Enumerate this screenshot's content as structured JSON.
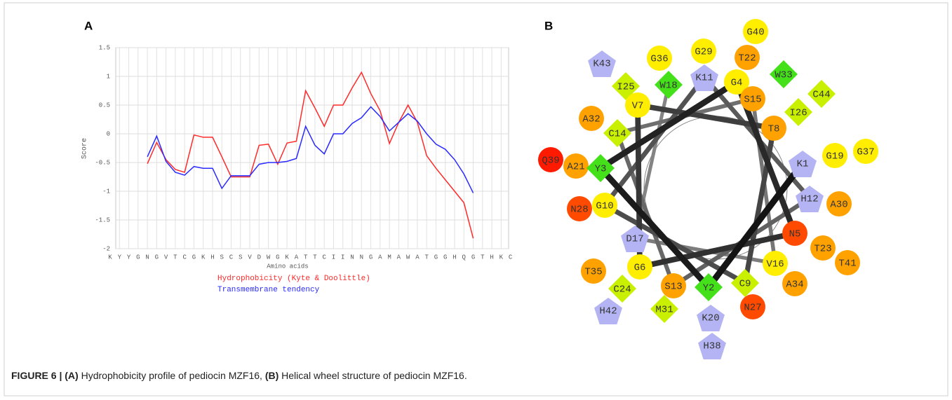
{
  "figure": {
    "panel_a": "A",
    "panel_b": "B",
    "caption": {
      "label": "FIGURE 6 |",
      "a_label": "(A)",
      "a_text": "Hydrophobicity profile of pediocin MZF16,",
      "b_label": "(B)",
      "b_text": "Helical wheel structure of pediocin MZF16."
    }
  },
  "chart_data": {
    "type": "line",
    "x_label": "Amino acids",
    "y_label": "Score",
    "categories": [
      "K",
      "Y",
      "Y",
      "G",
      "N",
      "G",
      "V",
      "T",
      "C",
      "G",
      "K",
      "H",
      "S",
      "C",
      "S",
      "V",
      "D",
      "W",
      "G",
      "K",
      "A",
      "T",
      "T",
      "C",
      "I",
      "I",
      "N",
      "N",
      "G",
      "A",
      "M",
      "A",
      "W",
      "A",
      "T",
      "G",
      "G",
      "H",
      "Q",
      "G",
      "T",
      "H",
      "K",
      "C"
    ],
    "series": [
      {
        "name": "Hydrophobicity (Kyte & Doolittle)",
        "color": "#ff2a2a",
        "values": [
          null,
          null,
          null,
          null,
          -0.52,
          -0.15,
          -0.45,
          -0.62,
          -0.67,
          -0.02,
          -0.06,
          -0.06,
          -0.4,
          -0.75,
          -0.75,
          -0.75,
          -0.2,
          -0.18,
          -0.53,
          -0.16,
          -0.13,
          0.75,
          0.45,
          0.13,
          0.5,
          0.5,
          0.8,
          1.07,
          0.7,
          0.4,
          -0.17,
          0.2,
          0.5,
          0.2,
          -0.38,
          -0.6,
          -0.8,
          -1.0,
          -1.2,
          -1.82,
          null,
          null,
          null,
          null
        ]
      },
      {
        "name": "Transmembrane tendency",
        "color": "#2a2aff",
        "values": [
          null,
          null,
          null,
          null,
          -0.4,
          -0.04,
          -0.48,
          -0.67,
          -0.72,
          -0.57,
          -0.6,
          -0.6,
          -0.95,
          -0.73,
          -0.73,
          -0.73,
          -0.53,
          -0.5,
          -0.5,
          -0.48,
          -0.43,
          0.13,
          -0.2,
          -0.35,
          0.0,
          0.0,
          0.18,
          0.28,
          0.47,
          0.3,
          0.05,
          0.2,
          0.35,
          0.22,
          0.0,
          -0.18,
          -0.27,
          -0.45,
          -0.7,
          -1.03,
          null,
          null,
          null,
          null
        ]
      }
    ],
    "ylim": [
      -2,
      1.5
    ],
    "yticks": [
      1.5,
      1,
      0.5,
      0,
      -0.5,
      -1,
      -1.5,
      -2
    ],
    "grid": true
  },
  "helical_wheel": {
    "nodes": [
      "G40",
      "K43",
      "G36",
      "G29",
      "T22",
      "I25",
      "W18",
      "K11",
      "G4",
      "W33",
      "V7",
      "S15",
      "I26",
      "C44",
      "A32",
      "C14",
      "T8",
      "G19",
      "G37",
      "Q39",
      "A21",
      "Y3",
      "K1",
      "H12",
      "A30",
      "N28",
      "G10",
      "N5",
      "D17",
      "T23",
      "T35",
      "G6",
      "V16",
      "T41",
      "A34",
      "S13",
      "Y2",
      "C9",
      "C24",
      "H42",
      "M31",
      "N27",
      "K20",
      "H38"
    ]
  }
}
